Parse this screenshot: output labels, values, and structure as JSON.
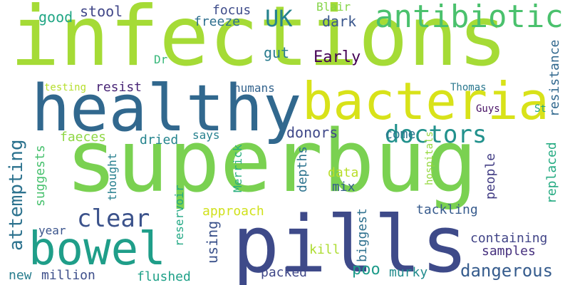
{
  "words": [
    {
      "text": "infections",
      "color": "#a5db36"
    },
    {
      "text": "superbug",
      "color": "#7ad151"
    },
    {
      "text": "pills",
      "color": "#3e4a89"
    },
    {
      "text": "healthy",
      "color": "#31688e"
    },
    {
      "text": "bacteria",
      "color": "#d8e219"
    },
    {
      "text": "antibiotic",
      "color": "#4ac16d"
    },
    {
      "text": "bowel",
      "color": "#1f9e89"
    },
    {
      "text": "doctors",
      "color": "#21918c"
    },
    {
      "text": "clear",
      "color": "#3b528b"
    },
    {
      "text": "attempting",
      "color": "#2c728e"
    },
    {
      "text": "UK",
      "color": "#26828e"
    },
    {
      "text": "dangerous",
      "color": "#365c8d"
    },
    {
      "text": "containing",
      "color": "#414487"
    },
    {
      "text": "stool",
      "color": "#404688"
    },
    {
      "text": "good",
      "color": "#21a685"
    },
    {
      "text": "focus",
      "color": "#3e4c8a"
    },
    {
      "text": "freeze",
      "color": "#2e6f8e"
    },
    {
      "text": "dark",
      "color": "#39568c"
    },
    {
      "text": "Blair",
      "color": "#86d549"
    },
    {
      "text": "gut",
      "color": "#297b8e"
    },
    {
      "text": "Dr",
      "color": "#35b779"
    },
    {
      "text": "Early",
      "color": "#440154"
    },
    {
      "text": "resistance",
      "color": "#31688e"
    },
    {
      "text": "testing",
      "color": "#b5de2b"
    },
    {
      "text": "resist",
      "color": "#482576"
    },
    {
      "text": "humans",
      "color": "#33638d"
    },
    {
      "text": "Thomas",
      "color": "#2a788e"
    },
    {
      "text": "Guys",
      "color": "#471164"
    },
    {
      "text": "St",
      "color": "#21a685"
    },
    {
      "text": "faeces",
      "color": "#8fd744"
    },
    {
      "text": "dried",
      "color": "#25848e"
    },
    {
      "text": "says",
      "color": "#26818e"
    },
    {
      "text": "donors",
      "color": "#3f4889"
    },
    {
      "text": "come",
      "color": "#2a768e"
    },
    {
      "text": "suggests",
      "color": "#48c16e"
    },
    {
      "text": "thought",
      "color": "#277f8e"
    },
    {
      "text": "Merrick",
      "color": "#29af7f"
    },
    {
      "text": "depths",
      "color": "#2c738e"
    },
    {
      "text": "data",
      "color": "#b8de29"
    },
    {
      "text": "mix",
      "color": "#355f8d"
    },
    {
      "text": "hospitals",
      "color": "#95d840"
    },
    {
      "text": "replaced",
      "color": "#25ab82"
    },
    {
      "text": "people",
      "color": "#433e85"
    },
    {
      "text": "biggest",
      "color": "#2d708e"
    },
    {
      "text": "reservoir",
      "color": "#22a884"
    },
    {
      "text": "approach",
      "color": "#d0e11c"
    },
    {
      "text": "tackling",
      "color": "#375b8d"
    },
    {
      "text": "using",
      "color": "#3b528b"
    },
    {
      "text": "year",
      "color": "#3a548c"
    },
    {
      "text": "kill",
      "color": "#addc30"
    },
    {
      "text": "samples",
      "color": "#46307e"
    },
    {
      "text": "new",
      "color": "#287d8e"
    },
    {
      "text": "million",
      "color": "#3d4e8a"
    },
    {
      "text": "flushed",
      "color": "#1fa188"
    },
    {
      "text": "packed",
      "color": "#3f4788"
    },
    {
      "text": "poo",
      "color": "#1e9b8a"
    },
    {
      "text": "murky",
      "color": "#228c8d"
    }
  ]
}
